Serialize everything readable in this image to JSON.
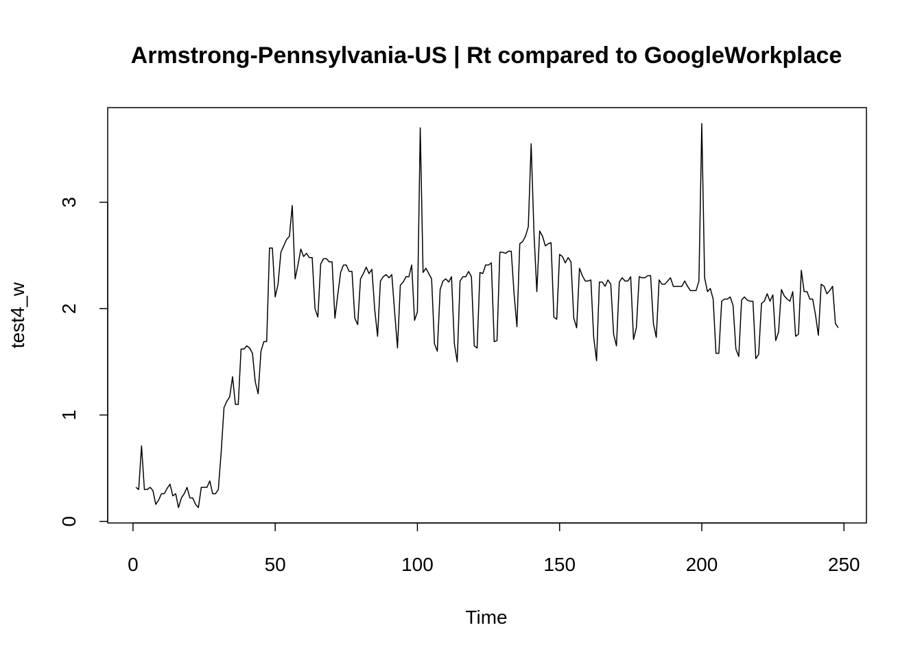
{
  "chart_data": {
    "type": "line",
    "title": "Armstrong-Pennsylvania-US | Rt compared to GoogleWorkplace",
    "x_label": "Time",
    "y_label": "test4_w",
    "x": [
      1,
      2,
      3,
      4,
      5,
      6,
      7,
      8,
      9,
      10,
      11,
      12,
      13,
      14,
      15,
      16,
      17,
      18,
      19,
      20,
      21,
      22,
      23,
      24,
      25,
      26,
      27,
      28,
      29,
      30,
      31,
      32,
      33,
      34,
      35,
      36,
      37,
      38,
      39,
      40,
      41,
      42,
      43,
      44,
      45,
      46,
      47,
      48,
      49,
      50,
      51,
      52,
      53,
      54,
      55,
      56,
      57,
      58,
      59,
      60,
      61,
      62,
      63,
      64,
      65,
      66,
      67,
      68,
      69,
      70,
      71,
      72,
      73,
      74,
      75,
      76,
      77,
      78,
      79,
      80,
      81,
      82,
      83,
      84,
      85,
      86,
      87,
      88,
      89,
      90,
      91,
      92,
      93,
      94,
      95,
      96,
      97,
      98,
      99,
      100,
      101,
      102,
      103,
      104,
      105,
      106,
      107,
      108,
      109,
      110,
      111,
      112,
      113,
      114,
      115,
      116,
      117,
      118,
      119,
      120,
      121,
      122,
      123,
      124,
      125,
      126,
      127,
      128,
      129,
      130,
      131,
      132,
      133,
      134,
      135,
      136,
      137,
      138,
      139,
      140,
      141,
      142,
      143,
      144,
      145,
      146,
      147,
      148,
      149,
      150,
      151,
      152,
      153,
      154,
      155,
      156,
      157,
      158,
      159,
      160,
      161,
      162,
      163,
      164,
      165,
      166,
      167,
      168,
      169,
      170,
      171,
      172,
      173,
      174,
      175,
      176,
      177,
      178,
      179,
      180,
      181,
      182,
      183,
      184,
      185,
      186,
      187,
      188,
      189,
      190,
      191,
      192,
      193,
      194,
      195,
      196,
      197,
      198,
      199,
      200,
      201,
      202,
      203,
      204,
      205,
      206,
      207,
      208,
      209,
      210,
      211,
      212,
      213,
      214,
      215,
      216,
      217,
      218,
      219,
      220,
      221,
      222,
      223,
      224,
      225,
      226,
      227,
      228,
      229,
      230,
      231,
      232,
      233,
      234,
      235,
      236,
      237,
      238,
      239,
      240,
      241,
      242,
      243,
      244,
      245,
      246,
      247,
      248
    ],
    "series": [
      {
        "name": "test4_w",
        "color": "#000000",
        "values": [
          0.32,
          0.3,
          0.71,
          0.3,
          0.3,
          0.32,
          0.29,
          0.16,
          0.2,
          0.26,
          0.26,
          0.31,
          0.35,
          0.24,
          0.26,
          0.13,
          0.22,
          0.26,
          0.32,
          0.22,
          0.22,
          0.16,
          0.13,
          0.32,
          0.32,
          0.32,
          0.38,
          0.26,
          0.26,
          0.3,
          0.65,
          1.07,
          1.13,
          1.17,
          1.36,
          1.1,
          1.1,
          1.62,
          1.62,
          1.65,
          1.63,
          1.58,
          1.31,
          1.2,
          1.6,
          1.69,
          1.69,
          2.57,
          2.57,
          2.11,
          2.23,
          2.53,
          2.59,
          2.65,
          2.68,
          2.97,
          2.28,
          2.41,
          2.56,
          2.49,
          2.52,
          2.48,
          2.48,
          2.0,
          1.92,
          2.42,
          2.47,
          2.47,
          2.44,
          2.44,
          1.91,
          2.13,
          2.34,
          2.41,
          2.41,
          2.35,
          2.35,
          1.91,
          1.85,
          2.28,
          2.33,
          2.39,
          2.33,
          2.37,
          1.99,
          1.74,
          2.26,
          2.3,
          2.32,
          2.29,
          2.32,
          1.97,
          1.63,
          2.22,
          2.25,
          2.3,
          2.3,
          2.41,
          1.89,
          1.97,
          3.7,
          2.34,
          2.38,
          2.33,
          2.28,
          1.67,
          1.6,
          2.18,
          2.26,
          2.28,
          2.25,
          2.3,
          1.67,
          1.5,
          2.26,
          2.3,
          2.3,
          2.35,
          2.3,
          1.65,
          1.63,
          2.34,
          2.33,
          2.41,
          2.41,
          2.43,
          1.69,
          1.7,
          2.53,
          2.53,
          2.52,
          2.54,
          2.54,
          2.14,
          1.83,
          2.61,
          2.63,
          2.68,
          2.77,
          3.55,
          2.71,
          2.16,
          2.73,
          2.68,
          2.59,
          2.61,
          2.62,
          1.92,
          1.9,
          2.51,
          2.49,
          2.43,
          2.48,
          2.44,
          1.91,
          1.82,
          2.38,
          2.31,
          2.26,
          2.26,
          2.27,
          1.73,
          1.51,
          2.25,
          2.25,
          2.21,
          2.27,
          2.23,
          1.76,
          1.65,
          2.25,
          2.29,
          2.26,
          2.26,
          2.3,
          1.71,
          1.82,
          2.3,
          2.29,
          2.29,
          2.31,
          2.31,
          1.86,
          1.73,
          2.27,
          2.23,
          2.23,
          2.26,
          2.29,
          2.21,
          2.21,
          2.21,
          2.21,
          2.26,
          2.21,
          2.17,
          2.17,
          2.17,
          2.26,
          3.74,
          2.29,
          2.16,
          2.19,
          2.09,
          1.58,
          1.58,
          2.07,
          2.09,
          2.09,
          2.11,
          2.03,
          1.62,
          1.55,
          2.08,
          2.11,
          2.08,
          2.07,
          2.07,
          1.53,
          1.57,
          2.05,
          2.07,
          2.14,
          2.07,
          2.13,
          1.7,
          1.78,
          2.18,
          2.12,
          2.09,
          2.07,
          2.16,
          1.74,
          1.76,
          2.36,
          2.16,
          2.16,
          2.09,
          2.09,
          1.94,
          1.75,
          2.23,
          2.21,
          2.14,
          2.17,
          2.21,
          1.86,
          1.82
        ]
      }
    ],
    "xlim": [
      -8.9,
      257.9
    ],
    "xticks": [
      0,
      50,
      100,
      150,
      200,
      250
    ],
    "ylim": [
      -0.015,
      3.89
    ],
    "yticks": [
      0,
      1,
      2,
      3
    ],
    "grid": false,
    "box": true
  }
}
